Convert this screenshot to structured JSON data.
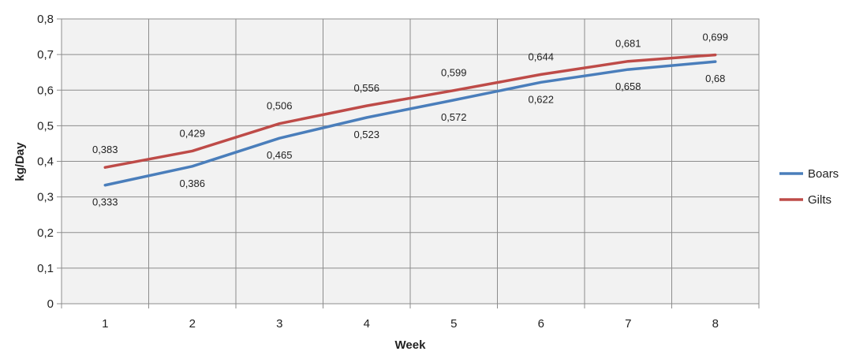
{
  "chart_data": {
    "type": "line",
    "title": "",
    "xlabel": "Week",
    "ylabel": "kg/Day",
    "categories": [
      "1",
      "2",
      "3",
      "4",
      "5",
      "6",
      "7",
      "8"
    ],
    "y_ticks": [
      "0",
      "0,1",
      "0,2",
      "0,3",
      "0,4",
      "0,5",
      "0,6",
      "0,7",
      "0,8"
    ],
    "ylim": [
      0,
      0.8
    ],
    "grid": true,
    "legend_position": "right",
    "series": [
      {
        "name": "Boars",
        "color": "#4a7ebb",
        "values": [
          0.333,
          0.386,
          0.465,
          0.523,
          0.572,
          0.622,
          0.658,
          0.68
        ],
        "labels": [
          "0,333",
          "0,386",
          "0,465",
          "0,523",
          "0,572",
          "0,622",
          "0,658",
          "0,68"
        ],
        "label_placement": "below"
      },
      {
        "name": "Gilts",
        "color": "#be4b48",
        "values": [
          0.383,
          0.429,
          0.506,
          0.556,
          0.599,
          0.644,
          0.681,
          0.699
        ],
        "labels": [
          "0,383",
          "0,429",
          "0,506",
          "0,556",
          "0,599",
          "0,644",
          "0,681",
          "0,699"
        ],
        "label_placement": "above"
      }
    ]
  }
}
